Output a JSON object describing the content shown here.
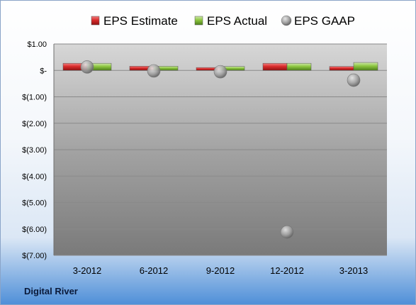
{
  "company_label": "Digital River",
  "colors": {
    "estimate": "#d92b2b",
    "actual": "#8cc63f",
    "gaap": "#a9a9a9"
  },
  "chart_data": {
    "type": "bar",
    "categories": [
      "3-2012",
      "6-2012",
      "9-2012",
      "12-2012",
      "3-2013"
    ],
    "series": [
      {
        "name": "EPS Estimate",
        "kind": "bar",
        "values": [
          0.27,
          0.16,
          0.11,
          0.27,
          0.15
        ]
      },
      {
        "name": "EPS Actual",
        "kind": "bar",
        "values": [
          0.27,
          0.16,
          0.15,
          0.27,
          0.3
        ]
      },
      {
        "name": "EPS GAAP",
        "kind": "point",
        "values": [
          0.13,
          -0.02,
          -0.05,
          -6.12,
          -0.37
        ]
      }
    ],
    "yticks": [
      {
        "value": 1,
        "label": "$1.00"
      },
      {
        "value": 0,
        "label": "$-"
      },
      {
        "value": -1,
        "label": "$(1.00)"
      },
      {
        "value": -2,
        "label": "$(2.00)"
      },
      {
        "value": -3,
        "label": "$(3.00)"
      },
      {
        "value": -4,
        "label": "$(4.00)"
      },
      {
        "value": -5,
        "label": "$(5.00)"
      },
      {
        "value": -6,
        "label": "$(6.00)"
      },
      {
        "value": -7,
        "label": "$(7.00)"
      }
    ],
    "ylim": [
      -7,
      1
    ],
    "grid": true,
    "legend_position": "top"
  }
}
